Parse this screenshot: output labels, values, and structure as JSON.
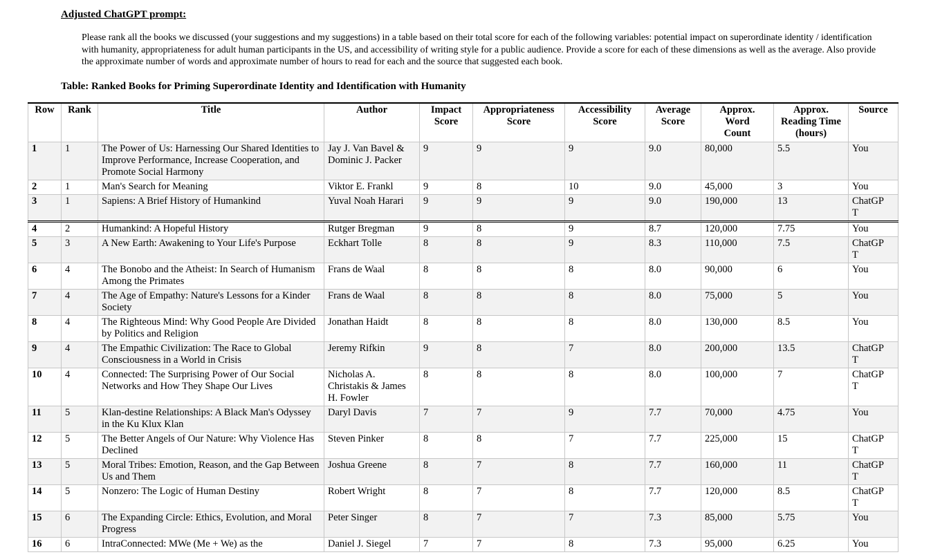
{
  "document": {
    "heading": "Adjusted ChatGPT prompt:",
    "prompt_paragraph": "Please rank all the books we discussed (your suggestions and my suggestions) in a table based on their total score for each of the following variables: potential impact on superordinate identity / identification with humanity, appropriateness for adult human participants in the US, and accessibility of writing style for a public audience. Provide a score for each of these dimensions as well as the average. Also provide the approximate number of words and approximate number of hours to read for each and the source that suggested each book.",
    "table_title": "Table: Ranked Books for Priming Superordinate Identity and Identification with Humanity"
  },
  "colors": {
    "background": "#ffffff",
    "text": "#000000",
    "row_stripe": "#f2f2f2",
    "grid_line": "#c6c6c6",
    "separator_line": "#000000"
  },
  "table": {
    "columns": [
      "Row",
      "Rank",
      "Title",
      "Author",
      "Impact Score",
      "Appropriateness Score",
      "Accessibility Score",
      "Average Score",
      "Approx. Word Count",
      "Approx. Reading Time (hours)",
      "Source"
    ],
    "rows": [
      {
        "row": "1",
        "rank": "1",
        "title": "The Power of Us: Harnessing Our Shared Identities to Improve Performance, Increase Cooperation, and Promote Social Harmony",
        "author": "Jay J. Van Bavel & Dominic J. Packer",
        "impact_score": "9",
        "appropriateness_score": "9",
        "accessibility_score": "9",
        "average_score": "9.0",
        "word_count": "80,000",
        "reading_time": "5.5",
        "source": "You"
      },
      {
        "row": "2",
        "rank": "1",
        "title": "Man's Search for Meaning",
        "author": "Viktor E. Frankl",
        "impact_score": "9",
        "appropriateness_score": "8",
        "accessibility_score": "10",
        "average_score": "9.0",
        "word_count": "45,000",
        "reading_time": "3",
        "source": "You"
      },
      {
        "row": "3",
        "rank": "1",
        "title": "Sapiens: A Brief History of Humankind",
        "author": "Yuval Noah Harari",
        "impact_score": "9",
        "appropriateness_score": "9",
        "accessibility_score": "9",
        "average_score": "9.0",
        "word_count": "190,000",
        "reading_time": "13",
        "source": "ChatGPT"
      },
      {
        "row": "4",
        "rank": "2",
        "title": "Humankind: A Hopeful History",
        "author": "Rutger Bregman",
        "impact_score": "9",
        "appropriateness_score": "8",
        "accessibility_score": "9",
        "average_score": "8.7",
        "word_count": "120,000",
        "reading_time": "7.75",
        "source": "You"
      },
      {
        "row": "5",
        "rank": "3",
        "title": "A New Earth: Awakening to Your Life's Purpose",
        "author": "Eckhart Tolle",
        "impact_score": "8",
        "appropriateness_score": "8",
        "accessibility_score": "9",
        "average_score": "8.3",
        "word_count": "110,000",
        "reading_time": "7.5",
        "source": "ChatGPT"
      },
      {
        "row": "6",
        "rank": "4",
        "title": "The Bonobo and the Atheist: In Search of Humanism Among the Primates",
        "author": "Frans de Waal",
        "impact_score": "8",
        "appropriateness_score": "8",
        "accessibility_score": "8",
        "average_score": "8.0",
        "word_count": "90,000",
        "reading_time": "6",
        "source": "You"
      },
      {
        "row": "7",
        "rank": "4",
        "title": "The Age of Empathy: Nature's Lessons for a Kinder Society",
        "author": "Frans de Waal",
        "impact_score": "8",
        "appropriateness_score": "8",
        "accessibility_score": "8",
        "average_score": "8.0",
        "word_count": "75,000",
        "reading_time": "5",
        "source": "You"
      },
      {
        "row": "8",
        "rank": "4",
        "title": "The Righteous Mind: Why Good People Are Divided by Politics and Religion",
        "author": "Jonathan Haidt",
        "impact_score": "8",
        "appropriateness_score": "8",
        "accessibility_score": "8",
        "average_score": "8.0",
        "word_count": "130,000",
        "reading_time": "8.5",
        "source": "You"
      },
      {
        "row": "9",
        "rank": "4",
        "title": "The Empathic Civilization: The Race to Global Consciousness in a World in Crisis",
        "author": "Jeremy Rifkin",
        "impact_score": "9",
        "appropriateness_score": "8",
        "accessibility_score": "7",
        "average_score": "8.0",
        "word_count": "200,000",
        "reading_time": "13.5",
        "source": "ChatGPT"
      },
      {
        "row": "10",
        "rank": "4",
        "title": "Connected: The Surprising Power of Our Social Networks and How They Shape Our Lives",
        "author": "Nicholas A. Christakis & James H. Fowler",
        "impact_score": "8",
        "appropriateness_score": "8",
        "accessibility_score": "8",
        "average_score": "8.0",
        "word_count": "100,000",
        "reading_time": "7",
        "source": "ChatGPT"
      },
      {
        "row": "11",
        "rank": "5",
        "title": "Klan-destine Relationships: A Black Man's Odyssey in the Ku Klux Klan",
        "author": "Daryl Davis",
        "impact_score": "7",
        "appropriateness_score": "7",
        "accessibility_score": "9",
        "average_score": "7.7",
        "word_count": "70,000",
        "reading_time": "4.75",
        "source": "You"
      },
      {
        "row": "12",
        "rank": "5",
        "title": "The Better Angels of Our Nature: Why Violence Has Declined",
        "author": "Steven Pinker",
        "impact_score": "8",
        "appropriateness_score": "8",
        "accessibility_score": "7",
        "average_score": "7.7",
        "word_count": "225,000",
        "reading_time": "15",
        "source": "ChatGPT"
      },
      {
        "row": "13",
        "rank": "5",
        "title": "Moral Tribes: Emotion, Reason, and the Gap Between Us and Them",
        "author": "Joshua Greene",
        "impact_score": "8",
        "appropriateness_score": "7",
        "accessibility_score": "8",
        "average_score": "7.7",
        "word_count": "160,000",
        "reading_time": "11",
        "source": "ChatGPT"
      },
      {
        "row": "14",
        "rank": "5",
        "title": "Nonzero: The Logic of Human Destiny",
        "author": "Robert Wright",
        "impact_score": "8",
        "appropriateness_score": "7",
        "accessibility_score": "8",
        "average_score": "7.7",
        "word_count": "120,000",
        "reading_time": "8.5",
        "source": "ChatGPT"
      },
      {
        "row": "15",
        "rank": "6",
        "title": "The Expanding Circle: Ethics, Evolution, and Moral Progress",
        "author": "Peter Singer",
        "impact_score": "8",
        "appropriateness_score": "7",
        "accessibility_score": "7",
        "average_score": "7.3",
        "word_count": "85,000",
        "reading_time": "5.75",
        "source": "You"
      },
      {
        "row": "16",
        "rank": "6",
        "title": "IntraConnected: MWe (Me + We) as the",
        "author": "Daniel J. Siegel",
        "impact_score": "7",
        "appropriateness_score": "7",
        "accessibility_score": "8",
        "average_score": "7.3",
        "word_count": "95,000",
        "reading_time": "6.25",
        "source": "You"
      }
    ]
  }
}
